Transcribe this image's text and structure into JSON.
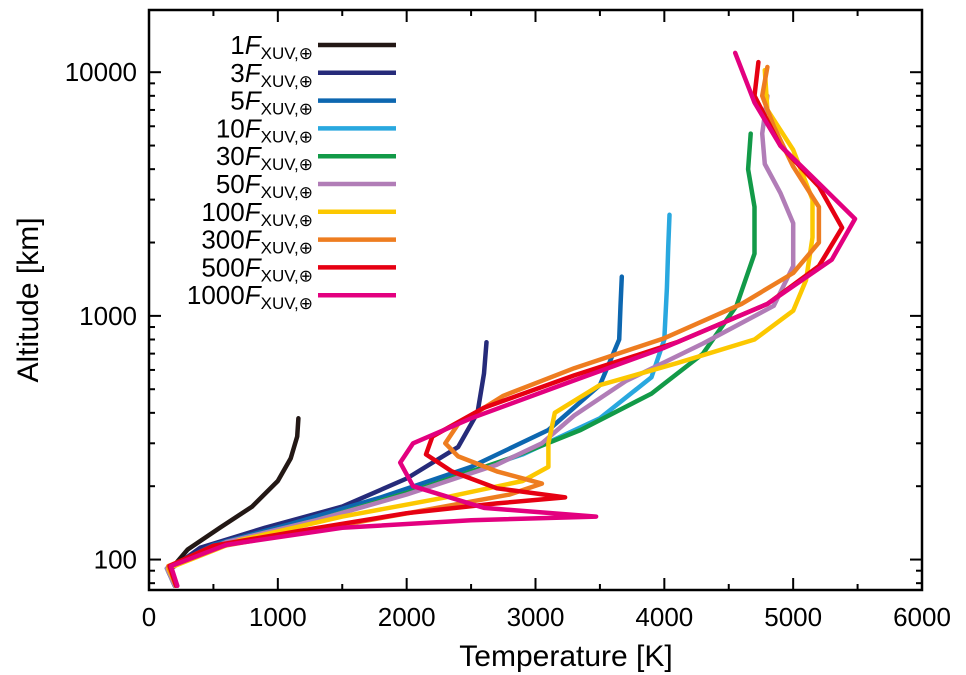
{
  "chart_data": {
    "type": "line",
    "xlabel": "Temperature [K]",
    "ylabel": "Altitude [km]",
    "xlim": [
      0,
      6000
    ],
    "ylim": [
      75,
      18000
    ],
    "yscale": "log",
    "x_ticks": [
      0,
      1000,
      2000,
      3000,
      4000,
      5000,
      6000
    ],
    "x_tick_labels": [
      "0",
      "1000",
      "2000",
      "3000",
      "4000",
      "5000",
      "6000"
    ],
    "y_ticks": [
      100,
      1000,
      10000
    ],
    "y_tick_labels": [
      "100",
      "1000",
      "10000"
    ],
    "grid": false,
    "legend_position": "top-left",
    "legend_subscript": "XUV,⊕",
    "series": [
      {
        "name": "1",
        "color": "#231815",
        "points": [
          [
            200,
            78
          ],
          [
            160,
            90
          ],
          [
            300,
            110
          ],
          [
            550,
            135
          ],
          [
            800,
            165
          ],
          [
            1000,
            210
          ],
          [
            1100,
            260
          ],
          [
            1150,
            320
          ],
          [
            1160,
            380
          ]
        ]
      },
      {
        "name": "3",
        "color": "#262b7a",
        "points": [
          [
            200,
            78
          ],
          [
            150,
            90
          ],
          [
            400,
            112
          ],
          [
            900,
            135
          ],
          [
            1500,
            165
          ],
          [
            2000,
            215
          ],
          [
            2400,
            290
          ],
          [
            2550,
            400
          ],
          [
            2600,
            580
          ],
          [
            2620,
            780
          ]
        ]
      },
      {
        "name": "5",
        "color": "#0d67b0",
        "points": [
          [
            200,
            78
          ],
          [
            140,
            92
          ],
          [
            500,
            115
          ],
          [
            1100,
            140
          ],
          [
            1800,
            180
          ],
          [
            2500,
            240
          ],
          [
            3100,
            340
          ],
          [
            3500,
            520
          ],
          [
            3650,
            800
          ],
          [
            3660,
            1100
          ],
          [
            3670,
            1450
          ]
        ]
      },
      {
        "name": "10",
        "color": "#29a8df",
        "points": [
          [
            200,
            78
          ],
          [
            140,
            92
          ],
          [
            600,
            118
          ],
          [
            1300,
            145
          ],
          [
            2100,
            195
          ],
          [
            2900,
            270
          ],
          [
            3500,
            380
          ],
          [
            3900,
            560
          ],
          [
            4000,
            800
          ],
          [
            4020,
            1300
          ],
          [
            4030,
            1900
          ],
          [
            4040,
            2600
          ]
        ]
      },
      {
        "name": "30",
        "color": "#129a48",
        "points": [
          [
            200,
            78
          ],
          [
            140,
            92
          ],
          [
            600,
            118
          ],
          [
            1300,
            145
          ],
          [
            2100,
            195
          ],
          [
            2800,
            260
          ],
          [
            3350,
            340
          ],
          [
            3900,
            480
          ],
          [
            4300,
            700
          ],
          [
            4560,
            1100
          ],
          [
            4700,
            1800
          ],
          [
            4700,
            2800
          ],
          [
            4650,
            4000
          ],
          [
            4670,
            5600
          ]
        ]
      },
      {
        "name": "50",
        "color": "#b17db7",
        "points": [
          [
            200,
            78
          ],
          [
            140,
            92
          ],
          [
            600,
            118
          ],
          [
            1300,
            145
          ],
          [
            2000,
            185
          ],
          [
            2700,
            245
          ],
          [
            3050,
            300
          ],
          [
            3300,
            390
          ],
          [
            3700,
            540
          ],
          [
            4300,
            770
          ],
          [
            4850,
            1100
          ],
          [
            5000,
            1600
          ],
          [
            5000,
            2400
          ],
          [
            4900,
            3200
          ],
          [
            4780,
            4200
          ],
          [
            4760,
            5600
          ],
          [
            4800,
            8000
          ]
        ]
      },
      {
        "name": "100",
        "color": "#fcc800",
        "points": [
          [
            210,
            78
          ],
          [
            150,
            92
          ],
          [
            700,
            120
          ],
          [
            1500,
            150
          ],
          [
            2300,
            180
          ],
          [
            2900,
            210
          ],
          [
            3100,
            240
          ],
          [
            3100,
            300
          ],
          [
            3150,
            400
          ],
          [
            3500,
            520
          ],
          [
            4100,
            640
          ],
          [
            4700,
            800
          ],
          [
            5000,
            1050
          ],
          [
            5100,
            1400
          ],
          [
            5150,
            2100
          ],
          [
            5150,
            3000
          ],
          [
            5000,
            4800
          ],
          [
            4800,
            7000
          ],
          [
            4780,
            10200
          ]
        ]
      },
      {
        "name": "300",
        "color": "#ee7d20",
        "points": [
          [
            210,
            78
          ],
          [
            150,
            94
          ],
          [
            500,
            112
          ],
          [
            1200,
            130
          ],
          [
            2100,
            158
          ],
          [
            2800,
            185
          ],
          [
            3050,
            205
          ],
          [
            2700,
            230
          ],
          [
            2400,
            265
          ],
          [
            2300,
            300
          ],
          [
            2400,
            360
          ],
          [
            2750,
            470
          ],
          [
            3300,
            610
          ],
          [
            4000,
            810
          ],
          [
            4600,
            1120
          ],
          [
            5000,
            1500
          ],
          [
            5200,
            2000
          ],
          [
            5200,
            2800
          ],
          [
            5000,
            4100
          ],
          [
            4850,
            6000
          ],
          [
            4760,
            8000
          ],
          [
            4800,
            10500
          ]
        ]
      },
      {
        "name": "500",
        "color": "#e60012",
        "points": [
          [
            210,
            78
          ],
          [
            160,
            94
          ],
          [
            500,
            114
          ],
          [
            1200,
            132
          ],
          [
            2000,
            155
          ],
          [
            2700,
            170
          ],
          [
            3230,
            180
          ],
          [
            2700,
            196
          ],
          [
            2350,
            230
          ],
          [
            2150,
            270
          ],
          [
            2200,
            320
          ],
          [
            2600,
            420
          ],
          [
            3300,
            570
          ],
          [
            4100,
            780
          ],
          [
            4800,
            1120
          ],
          [
            5200,
            1600
          ],
          [
            5380,
            2300
          ],
          [
            5200,
            3400
          ],
          [
            4900,
            5000
          ],
          [
            4700,
            8000
          ],
          [
            4730,
            11000
          ]
        ]
      },
      {
        "name": "1000",
        "color": "#e3007f",
        "points": [
          [
            220,
            78
          ],
          [
            170,
            94
          ],
          [
            600,
            115
          ],
          [
            1500,
            135
          ],
          [
            2500,
            145
          ],
          [
            3470,
            150
          ],
          [
            2600,
            163
          ],
          [
            2050,
            200
          ],
          [
            1950,
            250
          ],
          [
            2050,
            300
          ],
          [
            2500,
            380
          ],
          [
            3200,
            520
          ],
          [
            4000,
            740
          ],
          [
            4800,
            1120
          ],
          [
            5300,
            1700
          ],
          [
            5480,
            2500
          ],
          [
            5200,
            3500
          ],
          [
            4900,
            5000
          ],
          [
            4700,
            7500
          ],
          [
            4550,
            12000
          ]
        ]
      }
    ]
  }
}
